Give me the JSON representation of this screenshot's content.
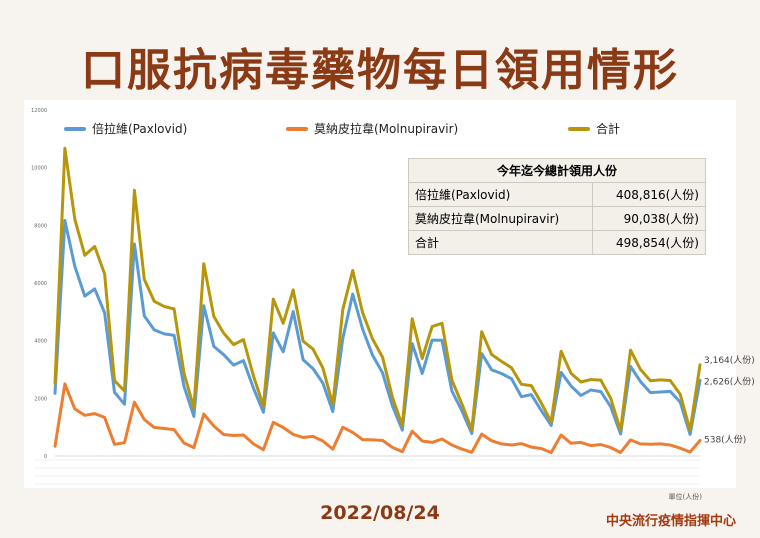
{
  "title": "口服抗病毒藥物每日領用情形",
  "date": "2022/08/24",
  "org": "中央流行疫情指揮中心",
  "unit_note": "單位(人份)",
  "colors": {
    "paxlovid": "#5b9bd5",
    "molnupiravir": "#ed7d31",
    "total": "#b8960b",
    "title": "#8a3a14"
  },
  "summary": {
    "header": "今年迄今總計領用人份",
    "rows": [
      {
        "label": "倍拉維(Paxlovid)",
        "value": "408,816(人份)"
      },
      {
        "label": "莫納皮拉韋(Molnupiravir)",
        "value": "90,038(人份)"
      },
      {
        "label": "合計",
        "value": "498,854(人份)"
      }
    ]
  },
  "annotations": {
    "total_last": "3,164(人份)",
    "pax_last": "2,626(人份)",
    "mol_last": "538(人份)"
  },
  "chart_data": {
    "type": "line",
    "ylim": [
      0,
      12000
    ],
    "yticks": [
      "0",
      "2000",
      "4000",
      "6000",
      "8000",
      "10000",
      "12000"
    ],
    "legend_position": "top",
    "grid": false,
    "series": [
      {
        "name": "倍拉維(Paxlovid)",
        "key": "paxlovid",
        "values": [
          2176,
          8169,
          6579,
          5546,
          5795,
          4971,
          2209,
          1795,
          7354,
          4860,
          4375,
          4236,
          4182,
          2417,
          1374,
          5213,
          3800,
          3512,
          3152,
          3308,
          2350,
          1520,
          4270,
          3613,
          5012,
          3340,
          3031,
          2530,
          1540,
          4080,
          5615,
          4400,
          3500,
          2890,
          1741,
          899,
          3900,
          2860,
          4020,
          4012,
          2250,
          1573,
          780,
          3550,
          2990,
          2860,
          2680,
          2056,
          2130,
          1580,
          1060,
          2900,
          2430,
          2098,
          2290,
          2233,
          1710,
          764,
          3112,
          2580,
          2200,
          2218,
          2239,
          1870,
          750,
          2626
        ]
      },
      {
        "name": "莫納皮拉韋(Molnupiravir)",
        "key": "molnupiravir",
        "values": [
          337,
          2502,
          1632,
          1413,
          1470,
          1340,
          407,
          461,
          1865,
          1265,
          991,
          954,
          915,
          450,
          291,
          1454,
          1040,
          746,
          711,
          730,
          420,
          218,
          1170,
          990,
          750,
          640,
          680,
          520,
          240,
          1000,
          820,
          570,
          560,
          540,
          300,
          150,
          860,
          520,
          470,
          590,
          380,
          240,
          130,
          760,
          530,
          420,
          380,
          430,
          310,
          260,
          120,
          730,
          440,
          470,
          360,
          400,
          290,
          120,
          560,
          420,
          410,
          420,
          380,
          270,
          140,
          538
        ]
      },
      {
        "name": "合計",
        "key": "total",
        "values": [
          2513,
          10671,
          8211,
          6959,
          7265,
          6311,
          2616,
          2256,
          9219,
          6125,
          5366,
          5190,
          5097,
          2867,
          1665,
          6667,
          4840,
          4258,
          3863,
          4038,
          2770,
          1738,
          5440,
          4603,
          5762,
          3980,
          3711,
          3050,
          1780,
          5080,
          6435,
          4970,
          4060,
          3430,
          2041,
          1049,
          4760,
          3380,
          4490,
          4602,
          2630,
          1813,
          910,
          4310,
          3520,
          3280,
          3060,
          2486,
          2440,
          1840,
          1180,
          3630,
          2870,
          2568,
          2650,
          2633,
          2000,
          884,
          3672,
          3000,
          2610,
          2638,
          2619,
          2140,
          890,
          3164
        ]
      }
    ]
  }
}
